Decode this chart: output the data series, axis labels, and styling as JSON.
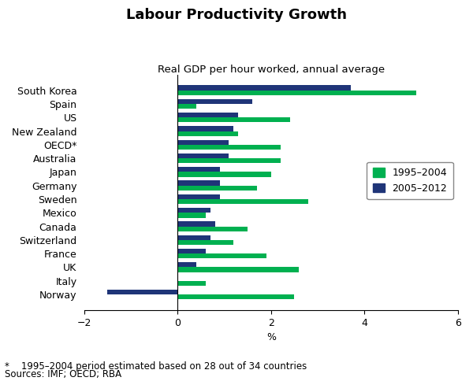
{
  "title": "Labour Productivity Growth",
  "subtitle": "Real GDP per hour worked, annual average",
  "xlabel": "%",
  "footnote": "*    1995–2004 period estimated based on 28 out of 34 countries",
  "sources": "Sources: IMF; OECD; RBA",
  "legend_labels": [
    "1995–2004",
    "2005–2012"
  ],
  "categories": [
    "South Korea",
    "Spain",
    "US",
    "New Zealand",
    "OECD*",
    "Australia",
    "Japan",
    "Germany",
    "Sweden",
    "Mexico",
    "Canada",
    "Switzerland",
    "France",
    "UK",
    "Italy",
    "Norway"
  ],
  "series_green": [
    5.1,
    0.4,
    2.4,
    1.3,
    2.2,
    2.2,
    2.0,
    1.7,
    2.8,
    0.6,
    1.5,
    1.2,
    1.9,
    2.6,
    0.6,
    2.5
  ],
  "series_blue": [
    3.7,
    1.6,
    1.3,
    1.2,
    1.1,
    1.1,
    0.9,
    0.9,
    0.9,
    0.7,
    0.8,
    0.7,
    0.6,
    0.4,
    0.0,
    -1.5
  ],
  "xlim": [
    -2,
    6
  ],
  "xticks": [
    -2,
    0,
    2,
    4,
    6
  ],
  "bar_height": 0.36,
  "green_color": "#00b050",
  "blue_color": "#1F3578",
  "background_color": "#ffffff",
  "title_fontsize": 13,
  "subtitle_fontsize": 9.5,
  "label_fontsize": 9,
  "tick_fontsize": 9,
  "legend_fontsize": 9,
  "footnote_fontsize": 8.5
}
